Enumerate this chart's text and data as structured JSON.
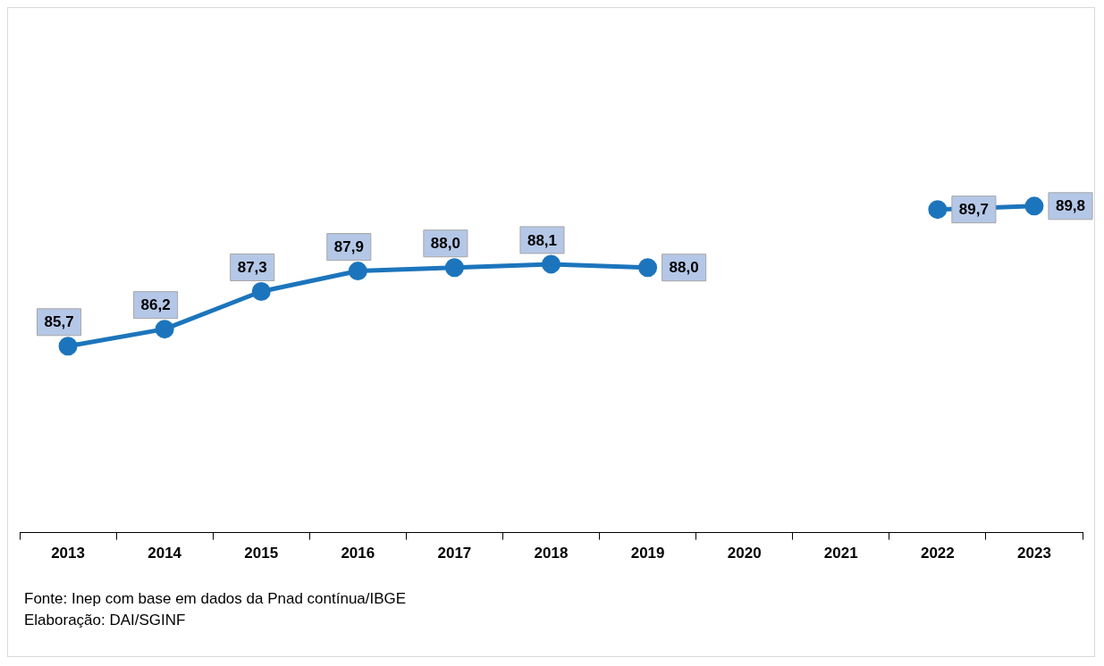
{
  "chart_data": {
    "type": "line",
    "categories": [
      "2013",
      "2014",
      "2015",
      "2016",
      "2017",
      "2018",
      "2019",
      "2020",
      "2021",
      "2022",
      "2023"
    ],
    "series": [
      {
        "color": "#1c75bc",
        "values": [
          85.7,
          86.2,
          87.3,
          87.9,
          88.0,
          88.1,
          88.0,
          null,
          null,
          89.7,
          89.8
        ],
        "value_labels": [
          "85,7",
          "86,2",
          "87,3",
          "87,9",
          "88,0",
          "88,1",
          "88,0",
          null,
          null,
          "89,7",
          "89,8"
        ]
      }
    ],
    "marker": "circle",
    "line_style": "solid",
    "legend": false,
    "grid": false,
    "tick_labels": "x",
    "annotations": [
      "Fonte: Inep com base em dados da Pnad contínua/IBGE",
      "Elaboração: DAI/SGINF"
    ]
  }
}
